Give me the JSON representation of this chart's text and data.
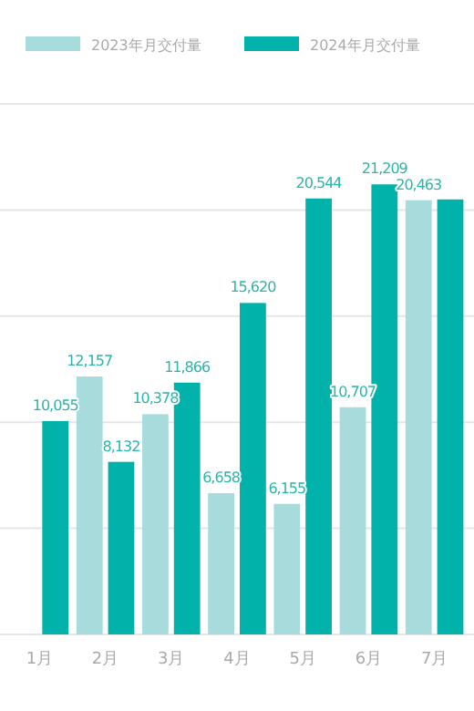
{
  "chart_data": {
    "type": "bar",
    "categories": [
      "1月",
      "2月",
      "3月",
      "4月",
      "5月",
      "6月",
      "7月"
    ],
    "series": [
      {
        "name": "2023年月交付量",
        "color": "#a8dcdc",
        "values": [
          null,
          12157,
          10378,
          6658,
          6155,
          10707,
          20463
        ],
        "value_labels": [
          null,
          "12,157",
          "10,378",
          "6,658",
          "6,155",
          "10,707",
          "20,463"
        ]
      },
      {
        "name": "2024年月交付量",
        "color": "#00b2a9",
        "values": [
          10055,
          8132,
          11866,
          15620,
          20544,
          21209,
          20500
        ],
        "value_labels": [
          "10,055",
          "8,132",
          "11,866",
          "15,620",
          "20,544",
          "21,209",
          null
        ]
      }
    ],
    "ylim": [
      0,
      25000
    ],
    "yticks": [
      {
        "value": 0,
        "label": null
      },
      {
        "value": 5000,
        "label": null
      },
      {
        "value": 10000,
        "label": null
      },
      {
        "value": 15000,
        "label": null
      },
      {
        "value": 20000,
        "label": null
      },
      {
        "value": 25000,
        "label": null
      }
    ],
    "grid": "y",
    "legend": "top",
    "tick_labels": "x"
  }
}
